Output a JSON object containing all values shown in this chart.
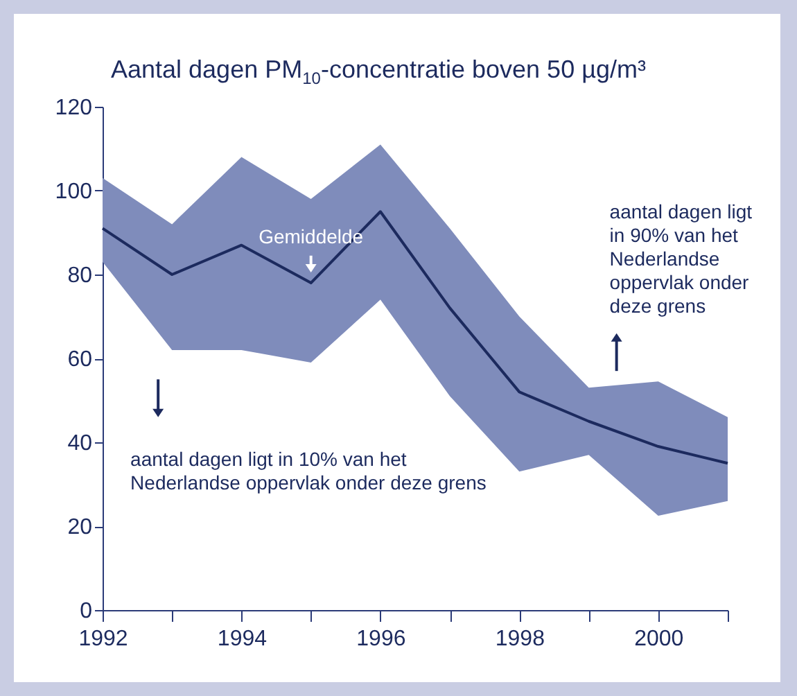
{
  "chart_data": {
    "type": "line",
    "title": "Aantal dagen PM$_{10}$-concentratie boven 50 µg/m³",
    "x": [
      1992,
      1993,
      1994,
      1995,
      1996,
      1997,
      1998,
      1999,
      2000,
      2001
    ],
    "series": [
      {
        "color": "#1c2a5e",
        "values": [
          91,
          80,
          87,
          78,
          95,
          72,
          52,
          45,
          39,
          35
        ],
        "lower": [
          83,
          62,
          62,
          59,
          74,
          51,
          33,
          37,
          22.5,
          26
        ],
        "upper": [
          103,
          92,
          108,
          98,
          111,
          91,
          70,
          53,
          54.5,
          46
        ]
      }
    ],
    "xlim": [
      1992,
      2001
    ],
    "xticks": [
      1992,
      {
        "value": 1993,
        "label": null
      },
      1994,
      {
        "value": 1995,
        "label": null
      },
      1996,
      {
        "value": 1997,
        "label": null
      },
      1998,
      {
        "value": 1999,
        "label": null
      },
      2000,
      {
        "value": 2001,
        "label": null
      }
    ],
    "ylim": [
      0,
      120
    ],
    "yticks": [
      0,
      20,
      40,
      60,
      80,
      100,
      120
    ],
    "grid": false,
    "marker": "none",
    "line_style": "solid",
    "annotations": [
      "Gemiddelde",
      "aantal dagen ligt in 10% van het Nederlandse oppervlak onder deze grens",
      "aantal dagen ligt in 90% van het Nederlandse oppervlak onder deze grens"
    ]
  }
}
